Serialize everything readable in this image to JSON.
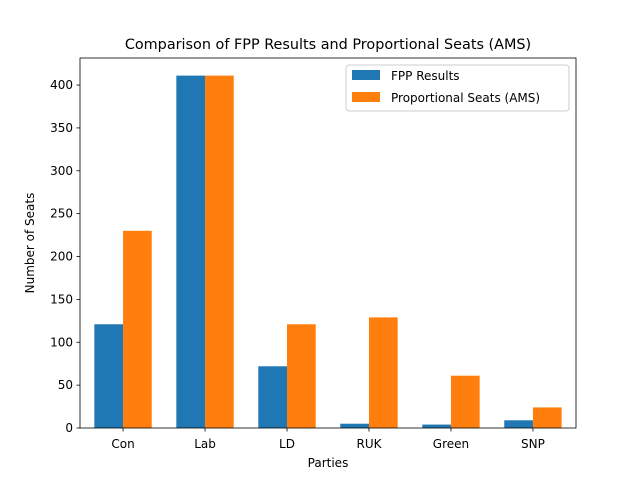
{
  "chart_data": {
    "type": "bar",
    "title": "Comparison of FPP Results and Proportional Seats (AMS)",
    "xlabel": "Parties",
    "ylabel": "Number of Seats",
    "categories": [
      "Con",
      "Lab",
      "LD",
      "RUK",
      "Green",
      "SNP"
    ],
    "series": [
      {
        "name": "FPP Results",
        "color": "#1f77b4",
        "values": [
          121,
          411,
          72,
          5,
          4,
          9
        ]
      },
      {
        "name": "Proportional Seats (AMS)",
        "color": "#ff7f0e",
        "values": [
          230,
          411,
          121,
          129,
          61,
          24
        ]
      }
    ],
    "ylim": [
      0,
      431.55
    ],
    "yticks": [
      0,
      50,
      100,
      150,
      200,
      250,
      300,
      350,
      400
    ],
    "legend_position": "top-right",
    "grid": false
  }
}
